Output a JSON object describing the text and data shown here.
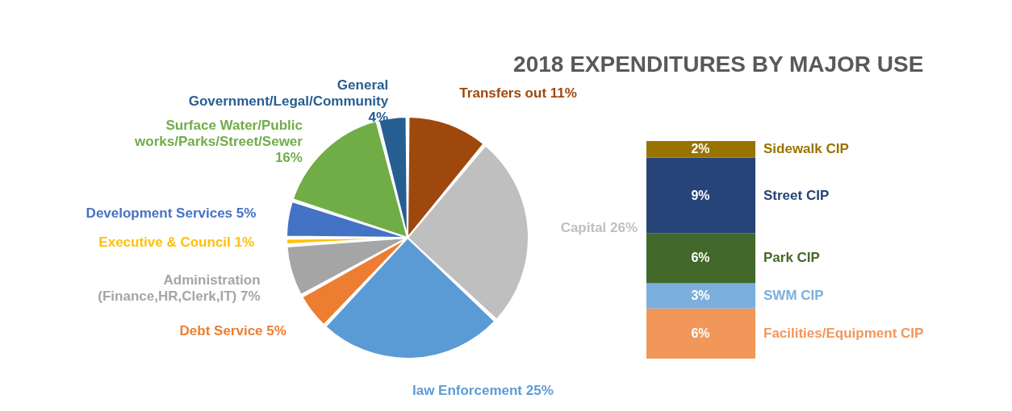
{
  "chart_data": [
    {
      "type": "pie",
      "title": "2018 EXPENDITURES BY MAJOR USE",
      "categories": [
        "Transfers out",
        "Capital",
        "law Enforcement",
        "Debt Service",
        "Administration (Finance,HR,Clerk,IT)",
        "Executive & Council",
        "Development Services",
        "Surface Water/Public works/Parks/Street/Sewer",
        "General Government/Legal/Community"
      ],
      "values": [
        11,
        26,
        25,
        5,
        7,
        1,
        5,
        16,
        4
      ],
      "value_labels": [
        "11%",
        "26%",
        "25%",
        "5%",
        "7%",
        "1%",
        "5%",
        "16%",
        "4%"
      ],
      "colors": [
        "#9e480e",
        "#bfbfbf",
        "#5b9bd5",
        "#ed7d31",
        "#a5a5a5",
        "#ffc000",
        "#4472c4",
        "#70ad47",
        "#255e91"
      ],
      "legend": false
    },
    {
      "type": "bar",
      "stacked": true,
      "categories": [
        null
      ],
      "legend": false,
      "series": [
        {
          "name": "Facilities/Equipment CIP",
          "color": "#f1975a",
          "values": [
            6
          ],
          "value_labels": [
            "6%"
          ]
        },
        {
          "name": "SWM CIP",
          "color": "#7cafdd",
          "values": [
            3
          ],
          "value_labels": [
            "3%"
          ]
        },
        {
          "name": "Park CIP",
          "color": "#43682b",
          "values": [
            6
          ],
          "value_labels": [
            "6%"
          ]
        },
        {
          "name": "Street CIP",
          "color": "#264478",
          "values": [
            9
          ],
          "value_labels": [
            "9%"
          ]
        },
        {
          "name": "Sidewalk CIP",
          "color": "#997300",
          "values": [
            2
          ],
          "value_labels": [
            "2%"
          ]
        }
      ]
    }
  ]
}
